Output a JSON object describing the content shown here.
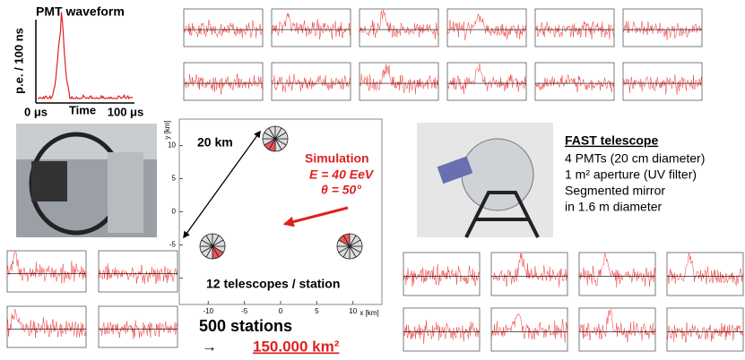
{
  "pmt": {
    "title": "PMT waveform",
    "ylabel": "p.e. / 100 ns",
    "xstart": "0 μs",
    "xlabel": "Time",
    "xend": "100 μs"
  },
  "map": {
    "distance": "20 km",
    "sim_title": "Simulation",
    "energy": "E = 40 EeV",
    "angle": "θ = 50°",
    "caption": "12 telescopes / station",
    "xlabel": "x [km]",
    "ylabel": "y [km]",
    "xlim": [
      -14,
      14
    ],
    "ylim": [
      -14,
      14
    ],
    "xticks": [
      -10,
      -5,
      0,
      5,
      10
    ],
    "yticks": [
      -10,
      -5,
      0,
      5,
      10
    ]
  },
  "stations": {
    "count": "500 stations",
    "arrow": "→",
    "area": "150.000 km²"
  },
  "fast": {
    "title": "FAST telescope",
    "lines": [
      "4 PMTs (20 cm diameter)",
      "1 m² aperture (UV filter)",
      "Segmented mirror",
      "in 1.6 m diameter"
    ]
  }
}
